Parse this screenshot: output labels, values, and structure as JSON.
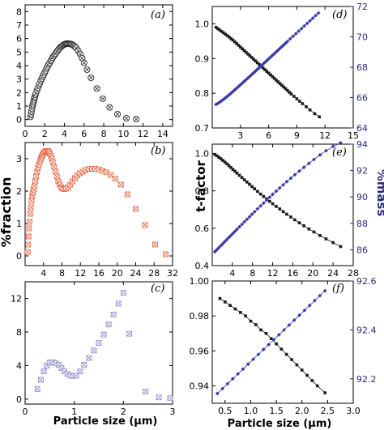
{
  "labels": {
    "left_ylabel": "%fraction",
    "right_ylabel_left": "t-factor",
    "right_ylabel_right": "%mass",
    "left_xlabel": "Particle size (μm)",
    "right_xlabel": "Particle size (μm)"
  },
  "colors": {
    "black": "#1a1a1a",
    "orange": "#e8603c",
    "purple_light": "#8c88c8",
    "blue": "#3a3aa8",
    "right_axis": "#2b2b7a"
  },
  "chart_data": [
    {
      "panel": "(a)",
      "type": "scatter",
      "xlim": [
        0,
        15
      ],
      "ylim": [
        -0.5,
        8.5
      ],
      "xticks": [
        0,
        2,
        4,
        6,
        8,
        10,
        12,
        14
      ],
      "yticks": [
        0,
        1,
        2,
        3,
        4,
        5,
        6,
        7,
        8
      ],
      "grid": false,
      "series": [
        {
          "marker": "circle-x",
          "color": "black",
          "x": [
            0.55,
            0.6,
            0.65,
            0.7,
            0.75,
            0.8,
            0.85,
            0.9,
            0.95,
            1.0,
            1.05,
            1.1,
            1.2,
            1.3,
            1.4,
            1.5,
            1.6,
            1.7,
            1.8,
            1.9,
            2.0,
            2.1,
            2.2,
            2.3,
            2.4,
            2.5,
            2.6,
            2.7,
            2.8,
            2.9,
            3.0,
            3.1,
            3.2,
            3.3,
            3.4,
            3.5,
            3.6,
            3.7,
            3.8,
            3.9,
            4.0,
            4.1,
            4.2,
            4.3,
            4.4,
            4.5,
            4.6,
            4.7,
            4.8,
            4.9,
            5.0,
            5.1,
            5.2,
            5.4,
            5.6,
            5.8,
            6.0,
            6.3,
            6.7,
            7.3,
            7.9,
            8.6,
            9.4,
            10.3,
            11.3
          ],
          "y": [
            0.2,
            0.4,
            0.6,
            0.8,
            1.0,
            1.15,
            1.3,
            1.45,
            1.6,
            1.7,
            1.85,
            1.95,
            2.15,
            2.35,
            2.55,
            2.7,
            2.9,
            3.05,
            3.2,
            3.35,
            3.5,
            3.65,
            3.8,
            3.95,
            4.1,
            4.2,
            4.35,
            4.45,
            4.6,
            4.7,
            4.8,
            4.9,
            5.0,
            5.1,
            5.2,
            5.28,
            5.36,
            5.42,
            5.48,
            5.53,
            5.57,
            5.6,
            5.62,
            5.63,
            5.63,
            5.62,
            5.6,
            5.58,
            5.55,
            5.5,
            5.45,
            5.38,
            5.3,
            5.1,
            4.85,
            4.55,
            4.2,
            3.7,
            3.1,
            2.3,
            1.55,
            0.9,
            0.4,
            0.1,
            0.03
          ]
        }
      ]
    },
    {
      "panel": "(b)",
      "type": "scatter",
      "xlim": [
        0,
        32
      ],
      "ylim": [
        -0.3,
        3.5
      ],
      "xticks": [
        4,
        8,
        12,
        16,
        20,
        24,
        28,
        32
      ],
      "yticks": [
        0,
        1,
        2,
        3
      ],
      "grid": false,
      "series": [
        {
          "marker": "square-x",
          "color": "orange",
          "x": [
            0.55,
            0.65,
            0.75,
            0.85,
            0.95,
            1.1,
            1.25,
            1.4,
            1.55,
            1.7,
            1.85,
            2.0,
            2.2,
            2.4,
            2.6,
            2.8,
            3.0,
            3.2,
            3.4,
            3.6,
            3.8,
            4.0,
            4.2,
            4.4,
            4.6,
            4.8,
            5.0,
            5.2,
            5.4,
            5.6,
            5.8,
            6.0,
            6.3,
            6.6,
            6.9,
            7.2,
            7.5,
            7.8,
            8.1,
            8.5,
            8.9,
            9.3,
            9.8,
            10.3,
            10.8,
            11.3,
            11.9,
            12.5,
            13.1,
            13.8,
            14.5,
            15.2,
            16.0,
            16.8,
            17.6,
            18.6,
            19.6,
            20.8,
            22.2,
            24.0,
            26.0,
            28.2,
            30.5
          ],
          "y": [
            0.12,
            0.35,
            0.6,
            0.85,
            1.05,
            1.3,
            1.5,
            1.7,
            1.85,
            1.95,
            2.05,
            2.15,
            2.3,
            2.45,
            2.6,
            2.72,
            2.82,
            2.92,
            3.0,
            3.07,
            3.12,
            3.17,
            3.2,
            3.22,
            3.24,
            3.24,
            3.23,
            3.2,
            3.15,
            3.08,
            3.0,
            2.9,
            2.75,
            2.6,
            2.45,
            2.3,
            2.2,
            2.12,
            2.08,
            2.06,
            2.08,
            2.12,
            2.2,
            2.3,
            2.4,
            2.48,
            2.55,
            2.6,
            2.65,
            2.68,
            2.69,
            2.69,
            2.67,
            2.63,
            2.58,
            2.5,
            2.38,
            2.2,
            1.9,
            1.45,
            0.95,
            0.35,
            0.05
          ]
        }
      ]
    },
    {
      "panel": "(c)",
      "type": "scatter",
      "xlim": [
        0,
        3
      ],
      "ylim": [
        -0.6,
        14
      ],
      "xticks": [
        0,
        1,
        2,
        3
      ],
      "yticks": [
        0,
        4,
        8,
        12
      ],
      "grid": false,
      "series": [
        {
          "marker": "square-x",
          "color": "purple_light",
          "x": [
            0.25,
            0.32,
            0.38,
            0.44,
            0.5,
            0.56,
            0.62,
            0.68,
            0.74,
            0.8,
            0.86,
            0.92,
            0.98,
            1.04,
            1.12,
            1.2,
            1.3,
            1.4,
            1.5,
            1.6,
            1.7,
            1.8,
            1.9,
            2.0,
            2.12,
            2.45,
            2.72,
            2.95
          ],
          "y": [
            1.2,
            2.3,
            3.3,
            4.0,
            4.35,
            4.4,
            4.3,
            4.1,
            3.7,
            3.3,
            3.0,
            2.8,
            2.75,
            2.8,
            3.3,
            4.1,
            4.9,
            5.8,
            6.7,
            7.7,
            8.9,
            10.1,
            11.4,
            12.7,
            7.8,
            0.9,
            0.2,
            0.1
          ]
        }
      ]
    },
    {
      "panel": "(d)",
      "type": "line",
      "xlim": [
        0,
        15
      ],
      "xticks": [
        3,
        6,
        9,
        12,
        15
      ],
      "ylim_left": [
        0.7,
        1.05
      ],
      "yticks_left": [
        0.7,
        0.8,
        0.9,
        1.0
      ],
      "ylim_right": [
        64,
        72
      ],
      "yticks_right": [
        64,
        66,
        68,
        70,
        72
      ],
      "grid": false,
      "series": [
        {
          "name": "",
          "axis": "left",
          "color": "black",
          "marker": "square",
          "x": [
            0.4,
            0.6,
            0.8,
            1.0,
            1.2,
            1.4,
            1.6,
            1.8,
            2.0,
            2.2,
            2.4,
            2.6,
            2.8,
            3.0,
            3.2,
            3.4,
            3.6,
            3.8,
            4.0,
            4.2,
            4.4,
            4.6,
            4.8,
            5.0,
            5.2,
            5.4,
            5.6,
            5.8,
            6.0,
            6.2,
            6.4,
            6.6,
            6.8,
            7.0,
            7.2,
            7.4,
            7.6,
            7.8,
            8.0,
            8.2,
            8.4,
            8.7,
            9.0,
            9.3,
            9.6,
            10.0,
            10.4,
            10.9,
            11.4
          ],
          "y": [
            0.99,
            0.986,
            0.982,
            0.978,
            0.974,
            0.97,
            0.966,
            0.962,
            0.957,
            0.953,
            0.948,
            0.943,
            0.938,
            0.933,
            0.928,
            0.923,
            0.918,
            0.913,
            0.908,
            0.903,
            0.898,
            0.893,
            0.888,
            0.883,
            0.878,
            0.873,
            0.868,
            0.863,
            0.858,
            0.853,
            0.848,
            0.843,
            0.838,
            0.833,
            0.828,
            0.823,
            0.818,
            0.813,
            0.808,
            0.803,
            0.798,
            0.791,
            0.784,
            0.777,
            0.77,
            0.761,
            0.752,
            0.741,
            0.732
          ]
        },
        {
          "name": "",
          "axis": "right",
          "color": "blue",
          "marker": "diamond",
          "x": [
            0.4,
            0.6,
            0.8,
            1.0,
            1.2,
            1.4,
            1.6,
            1.8,
            2.0,
            2.2,
            2.4,
            2.6,
            2.8,
            3.0,
            3.2,
            3.4,
            3.6,
            3.8,
            4.0,
            4.2,
            4.4,
            4.6,
            4.8,
            5.0,
            5.2,
            5.4,
            5.6,
            5.8,
            6.0,
            6.2,
            6.4,
            6.6,
            6.8,
            7.0,
            7.2,
            7.4,
            7.6,
            7.8,
            8.0,
            8.3,
            8.6,
            8.9,
            9.2,
            9.5,
            9.8,
            10.1,
            10.4,
            10.7,
            11.0,
            11.3
          ],
          "y": [
            65.55,
            65.62,
            65.7,
            65.79,
            65.88,
            65.98,
            66.08,
            66.18,
            66.29,
            66.4,
            66.51,
            66.62,
            66.73,
            66.84,
            66.95,
            67.07,
            67.18,
            67.29,
            67.4,
            67.52,
            67.63,
            67.74,
            67.86,
            67.97,
            68.09,
            68.2,
            68.32,
            68.43,
            68.55,
            68.66,
            68.78,
            68.89,
            69.01,
            69.12,
            69.24,
            69.35,
            69.47,
            69.58,
            69.7,
            69.87,
            70.04,
            70.21,
            70.38,
            70.55,
            70.72,
            70.89,
            71.06,
            71.23,
            71.4,
            71.57
          ]
        }
      ]
    },
    {
      "panel": "(e)",
      "type": "line",
      "xlim": [
        0,
        28
      ],
      "xticks": [
        4,
        8,
        12,
        16,
        20,
        24,
        28
      ],
      "ylim_left": [
        0.4,
        1.05
      ],
      "yticks_left": [
        0.4,
        0.6,
        0.8,
        1.0
      ],
      "ylim_right": [
        84.8,
        94
      ],
      "yticks_right": [
        86,
        88,
        90,
        92,
        94
      ],
      "grid": false,
      "series": [
        {
          "name": "",
          "axis": "left",
          "color": "black",
          "marker": "square",
          "x": [
            0.5,
            0.9,
            1.3,
            1.7,
            2.1,
            2.5,
            2.9,
            3.3,
            3.7,
            4.1,
            4.5,
            4.9,
            5.4,
            5.9,
            6.4,
            6.9,
            7.4,
            7.9,
            8.4,
            9.0,
            9.6,
            10.2,
            10.8,
            11.4,
            12.0,
            12.7,
            13.4,
            14.1,
            14.8,
            15.6,
            16.4,
            17.3,
            18.2,
            19.2,
            20.2,
            21.4,
            22.6,
            24.0,
            25.5
          ],
          "y": [
            0.995,
            0.988,
            0.98,
            0.972,
            0.963,
            0.954,
            0.945,
            0.935,
            0.925,
            0.915,
            0.905,
            0.895,
            0.883,
            0.871,
            0.859,
            0.847,
            0.835,
            0.823,
            0.811,
            0.797,
            0.783,
            0.77,
            0.757,
            0.744,
            0.731,
            0.717,
            0.703,
            0.689,
            0.675,
            0.66,
            0.645,
            0.629,
            0.613,
            0.596,
            0.58,
            0.561,
            0.543,
            0.523,
            0.502
          ]
        },
        {
          "name": "",
          "axis": "right",
          "color": "blue",
          "marker": "diamond",
          "x": [
            0.5,
            0.9,
            1.3,
            1.7,
            2.1,
            2.5,
            2.9,
            3.3,
            3.7,
            4.1,
            4.5,
            4.9,
            5.4,
            5.9,
            6.4,
            6.9,
            7.4,
            7.9,
            8.4,
            9.0,
            9.6,
            10.2,
            10.8,
            11.4,
            12.0,
            12.7,
            13.4,
            14.1,
            14.8,
            15.6,
            16.4,
            17.3,
            18.2,
            19.2,
            20.2,
            21.4,
            22.6,
            24.0,
            25.5
          ],
          "y": [
            85.85,
            86.0,
            86.15,
            86.31,
            86.46,
            86.62,
            86.77,
            86.93,
            87.08,
            87.24,
            87.39,
            87.55,
            87.74,
            87.93,
            88.12,
            88.31,
            88.5,
            88.69,
            88.88,
            89.1,
            89.32,
            89.54,
            89.76,
            89.98,
            90.2,
            90.44,
            90.68,
            90.92,
            91.16,
            91.42,
            91.68,
            91.96,
            92.24,
            92.54,
            92.84,
            93.18,
            93.5,
            93.82,
            94.1
          ]
        }
      ]
    },
    {
      "panel": "(f)",
      "type": "line",
      "xlim": [
        0.25,
        3.0
      ],
      "xticks": [
        0.5,
        1.0,
        1.5,
        2.0,
        2.5,
        3.0
      ],
      "ylim_left": [
        0.93,
        1.0
      ],
      "yticks_left": [
        0.94,
        0.96,
        0.98,
        1.0
      ],
      "ylim_right": [
        92.1,
        92.6
      ],
      "yticks_right": [
        92.2,
        92.4,
        92.6
      ],
      "grid": false,
      "series": [
        {
          "name": "",
          "axis": "left",
          "color": "black",
          "marker": "square",
          "x": [
            0.4,
            0.5,
            0.6,
            0.7,
            0.8,
            0.9,
            1.0,
            1.1,
            1.2,
            1.3,
            1.4,
            1.5,
            1.6,
            1.7,
            1.8,
            1.9,
            2.0,
            2.1,
            2.2,
            2.3,
            2.45
          ],
          "y": [
            0.99,
            0.988,
            0.986,
            0.984,
            0.982,
            0.98,
            0.977,
            0.975,
            0.972,
            0.97,
            0.967,
            0.964,
            0.961,
            0.958,
            0.955,
            0.952,
            0.949,
            0.946,
            0.943,
            0.94,
            0.936
          ]
        },
        {
          "name": "",
          "axis": "right",
          "color": "blue",
          "marker": "diamond",
          "x": [
            0.35,
            0.45,
            0.55,
            0.65,
            0.75,
            0.85,
            0.95,
            1.05,
            1.15,
            1.25,
            1.35,
            1.45,
            1.55,
            1.65,
            1.75,
            1.85,
            1.95,
            2.05,
            2.15,
            2.25,
            2.35,
            2.45
          ],
          "y": [
            92.14,
            92.16,
            92.18,
            92.2,
            92.22,
            92.24,
            92.26,
            92.28,
            92.3,
            92.32,
            92.34,
            92.36,
            92.38,
            92.4,
            92.42,
            92.44,
            92.46,
            92.48,
            92.5,
            92.52,
            92.54,
            92.56
          ]
        }
      ]
    }
  ]
}
